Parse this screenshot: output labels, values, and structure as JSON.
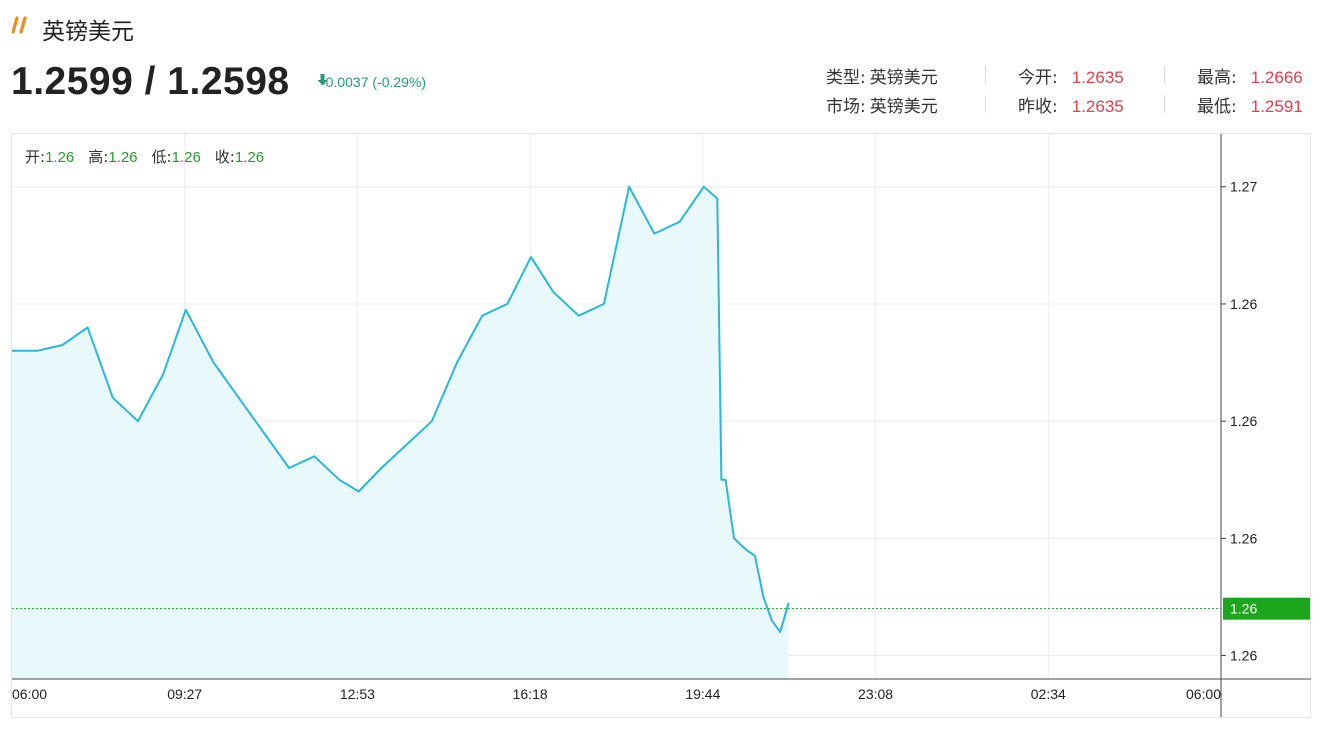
{
  "header": {
    "title": "英镑美元",
    "price": "1.2599 / 1.2598",
    "change": "-0.0037 (-0.29%)"
  },
  "info": {
    "type_label": "类型:",
    "type_value": "英镑美元",
    "market_label": "市场:",
    "market_value": "英镑美元",
    "open_today_label": "今开:",
    "open_today_value": "1.2635",
    "prev_close_label": "昨收:",
    "prev_close_value": "1.2635",
    "high_label": "最高:",
    "high_value": "1.2666",
    "low_label": "最低:",
    "low_value": "1.2591"
  },
  "ohlc": {
    "open_label": "开:",
    "open_value": "1.26",
    "high_label": "高:",
    "high_value": "1.26",
    "low_label": "低:",
    "low_value": "1.26",
    "close_label": "收:",
    "close_value": "1.26"
  },
  "colors": {
    "line": "#29b9d6",
    "area": "#e9f8fa",
    "up": "#e0424e",
    "down": "#2a9a73",
    "current": "#1ea51e"
  },
  "chart_data": {
    "type": "area",
    "x_ticks": [
      "06:00",
      "09:27",
      "12:53",
      "16:18",
      "19:44",
      "23:08",
      "02:34",
      "06:00"
    ],
    "y_tick_labels": [
      "1.27",
      "1.26",
      "1.26",
      "1.26",
      "1.26"
    ],
    "y_tick_values": [
      1.267,
      1.265,
      1.263,
      1.261,
      1.259
    ],
    "ylim": [
      1.2586,
      1.2679
    ],
    "current_value": 1.2598,
    "current_label": "1.26",
    "grid": true,
    "series": [
      {
        "x": [
          "06:00",
          "06:30",
          "07:00",
          "07:30",
          "08:00",
          "08:30",
          "09:00",
          "09:27",
          "10:00",
          "10:30",
          "11:00",
          "11:30",
          "12:00",
          "12:30",
          "12:53",
          "13:20",
          "13:50",
          "14:20",
          "14:50",
          "15:20",
          "15:50",
          "16:18",
          "16:45",
          "17:15",
          "17:45",
          "18:15",
          "18:45",
          "19:15",
          "19:44",
          "20:00",
          "20:05",
          "20:10",
          "20:20",
          "20:35",
          "20:45",
          "20:55",
          "21:05",
          "21:15",
          "21:25"
        ],
        "values": [
          1.2642,
          1.2642,
          1.2643,
          1.2646,
          1.2634,
          1.263,
          1.2638,
          1.2649,
          1.264,
          1.2634,
          1.2628,
          1.2622,
          1.2624,
          1.262,
          1.2618,
          1.2622,
          1.2626,
          1.263,
          1.264,
          1.2648,
          1.265,
          1.2658,
          1.2652,
          1.2648,
          1.265,
          1.267,
          1.2662,
          1.2664,
          1.267,
          1.2668,
          1.262,
          1.262,
          1.261,
          1.2608,
          1.2607,
          1.26,
          1.2596,
          1.2594,
          1.2599
        ]
      }
    ]
  }
}
